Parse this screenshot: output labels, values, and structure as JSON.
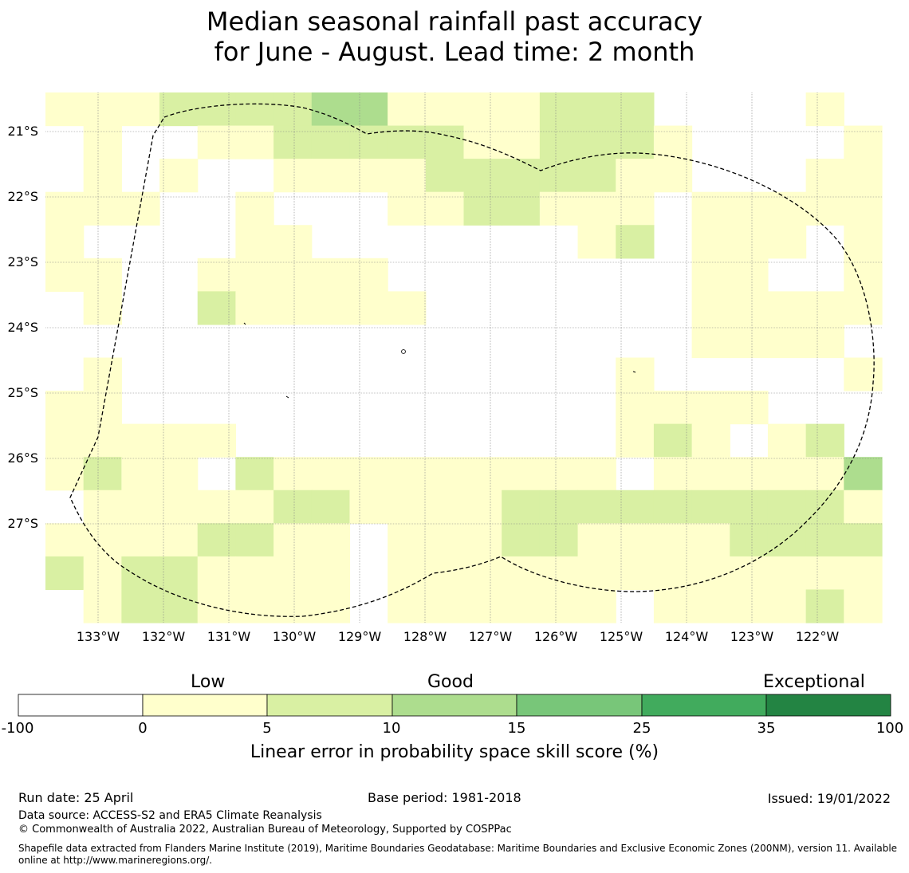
{
  "title": {
    "line1": "Median seasonal rainfall past accuracy",
    "line2": "for June - August. Lead time: 2 month"
  },
  "map": {
    "lat_labels": [
      "21°S",
      "22°S",
      "23°S",
      "24°S",
      "25°S",
      "26°S",
      "27°S"
    ],
    "lon_labels": [
      "133°W",
      "132°W",
      "131°W",
      "130°W",
      "129°W",
      "128°W",
      "127°W",
      "126°W",
      "125°W",
      "124°W",
      "123°W",
      "122°W"
    ],
    "category_colors": [
      "#ffffff",
      "#ffffcc",
      "#d9f0a3",
      "#addd8e",
      "#78c679",
      "#41ab5d",
      "#238443"
    ],
    "grid_rows": [
      "1112222331111222000010",
      "0100112222211222100001",
      "0101001111222221100011",
      "1110010001122111011111",
      "1000011000000012011101",
      "1100111110000000011001",
      "0100211111000000011111",
      "0000000000000000011110",
      "0100000000000001000001",
      "1100000000000001111000",
      "1111100000000001210120",
      "1211021111111110111113",
      "0111112211112222222221",
      "1111221101112211112222",
      "2122111101111111111111",
      "0122111101111110111121"
    ]
  },
  "colorbar": {
    "category_labels": [
      "Low",
      "Good",
      "Exceptional"
    ],
    "ticks": [
      "-100",
      "0",
      "5",
      "10",
      "15",
      "25",
      "35",
      "100"
    ],
    "colors": [
      "#ffffff",
      "#ffffcc",
      "#d9f0a3",
      "#addd8e",
      "#78c679",
      "#41ab5d",
      "#238443"
    ],
    "label": "Linear error in probability space skill score (%)"
  },
  "footer": {
    "run_date": "Run date: 25 April",
    "base_period": "Base period: 1981-2018",
    "issued": "Issued: 19/01/2022",
    "data_source": "Data source: ACCESS-S2 and ERA5 Climate Reanalysis",
    "copyright": "© Commonwealth of Australia 2022, Australian Bureau of Meteorology, Supported by COSPPac",
    "shapefile_line1": "Shapefile data extracted from Flanders Marine Institute (2019), Maritime Boundaries Geodatabase: Maritime Boundaries and Exclusive Economic Zones (200NM), version 11. Available",
    "shapefile_line2": "online at http://www.marineregions.org/."
  }
}
